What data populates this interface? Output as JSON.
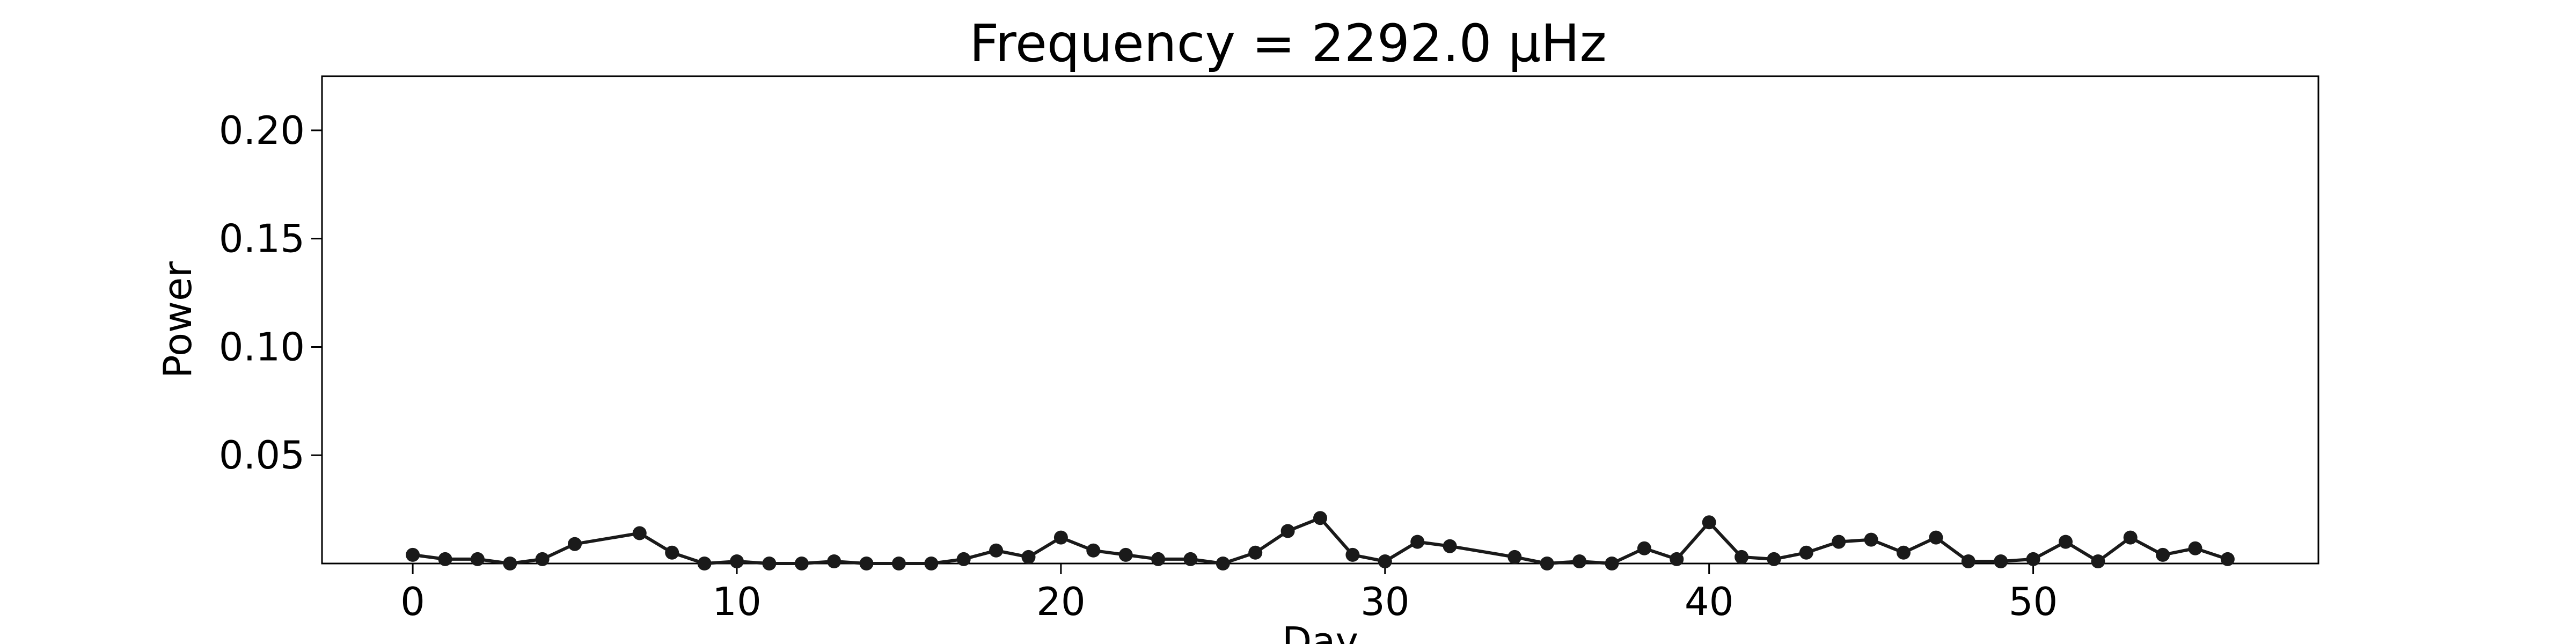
{
  "chart_data": {
    "type": "line",
    "title": "Frequency = 2292.0 μHz",
    "xlabel": "Day",
    "ylabel": "Power",
    "xlim": [
      -2.8,
      58.8
    ],
    "ylim": [
      0.0,
      0.225
    ],
    "xticks": [
      0,
      10,
      20,
      30,
      40,
      50
    ],
    "yticks": [
      0.05,
      0.1,
      0.15,
      0.2
    ],
    "xtick_labels": [
      "0",
      "10",
      "20",
      "30",
      "40",
      "50"
    ],
    "ytick_labels": [
      "0.05",
      "0.10",
      "0.15",
      "0.20"
    ],
    "grid": false,
    "legend": "none",
    "series": [
      {
        "color": "#1a1a1a",
        "marker": "circle",
        "x": [
          0,
          1,
          2,
          3,
          4,
          5,
          7,
          8,
          9,
          10,
          11,
          12,
          13,
          14,
          15,
          16,
          17,
          18,
          19,
          20,
          21,
          22,
          23,
          24,
          25,
          26,
          27,
          28,
          29,
          30,
          31,
          32,
          34,
          35,
          36,
          37,
          38,
          39,
          40,
          41,
          42,
          43,
          44,
          45,
          46,
          47,
          48,
          49,
          50,
          51,
          52,
          53,
          54,
          55,
          56
        ],
        "y": [
          0.004,
          0.002,
          0.002,
          0.0,
          0.002,
          0.009,
          0.014,
          0.005,
          0.0,
          0.001,
          0.0,
          0.0,
          0.001,
          0.0,
          0.0,
          0.0,
          0.002,
          0.006,
          0.003,
          0.012,
          0.006,
          0.004,
          0.002,
          0.002,
          0.0,
          0.005,
          0.015,
          0.021,
          0.004,
          0.001,
          0.01,
          0.008,
          0.003,
          0.0,
          0.001,
          0.0,
          0.007,
          0.002,
          0.019,
          0.003,
          0.002,
          0.005,
          0.01,
          0.011,
          0.005,
          0.012,
          0.001,
          0.001,
          0.002,
          0.01,
          0.001,
          0.012,
          0.004,
          0.007,
          0.002
        ]
      }
    ]
  }
}
